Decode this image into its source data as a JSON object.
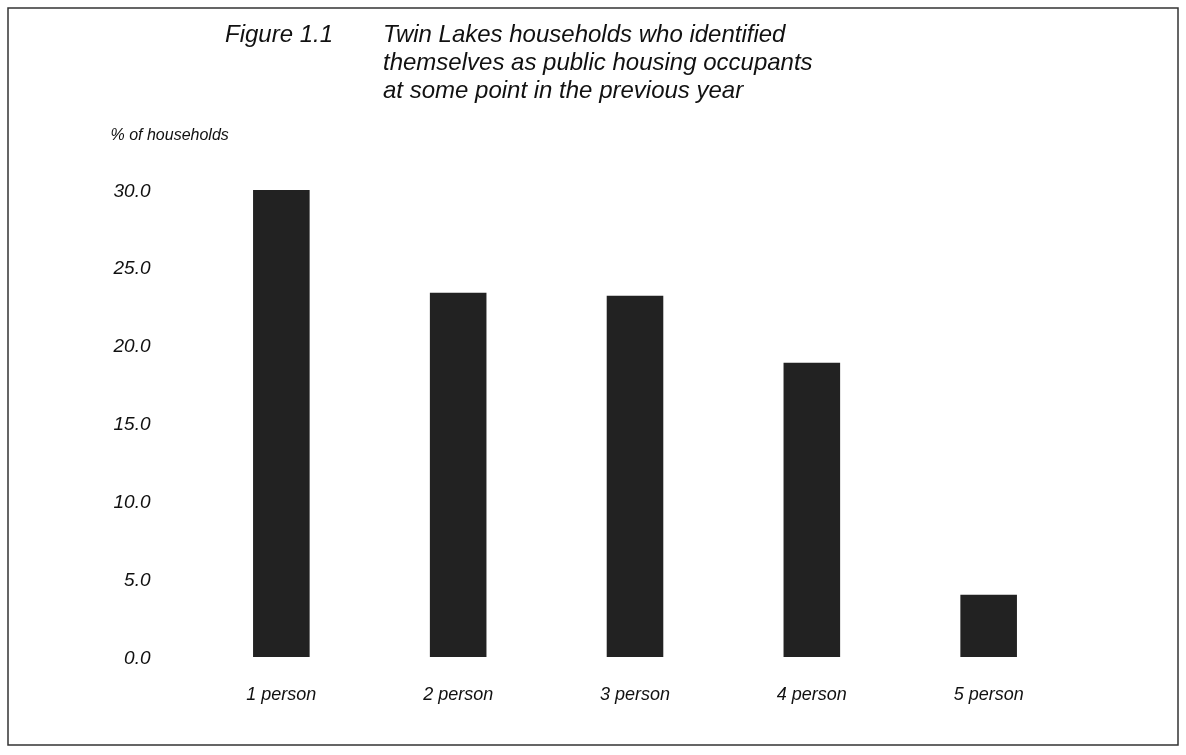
{
  "chart_data": {
    "type": "bar",
    "title": "Figure 1.1",
    "subtitle": "Twin Lakes households who identified themselves as public housing occupants at some point in the previous year",
    "ylabel": "% of households",
    "categories": [
      "1 person",
      "2 person",
      "3 person",
      "4 person",
      "5 person"
    ],
    "values": [
      30.0,
      23.4,
      23.2,
      18.9,
      4.0
    ],
    "color": "#222222",
    "ylim": [
      0,
      30
    ],
    "yticks": [
      {
        "value": 0,
        "label": "0.0"
      },
      {
        "value": 5,
        "label": "5.0"
      },
      {
        "value": 10,
        "label": "10.0"
      },
      {
        "value": 15,
        "label": "15.0"
      },
      {
        "value": 20,
        "label": "20.0"
      },
      {
        "value": 25,
        "label": "25.0"
      },
      {
        "value": 30,
        "label": "30.0"
      }
    ],
    "grid": false
  }
}
